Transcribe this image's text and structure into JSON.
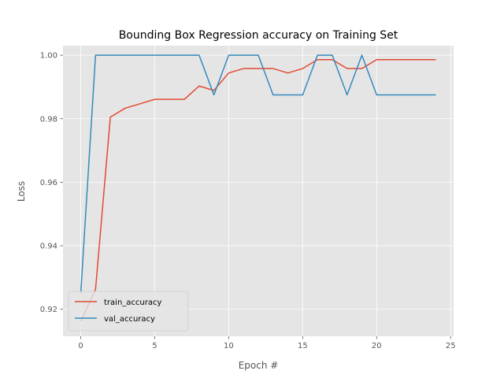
{
  "chart_data": {
    "type": "line",
    "title": "Bounding Box Regression accuracy on Training Set",
    "xlabel": "Epoch #",
    "ylabel": "Loss",
    "xlim": [
      -1.2,
      25.2
    ],
    "ylim": [
      0.9115,
      1.003
    ],
    "xticks": [
      0,
      5,
      10,
      15,
      20,
      25
    ],
    "xtick_labels": [
      "0",
      "5",
      "10",
      "15",
      "20",
      "25"
    ],
    "yticks": [
      0.92,
      0.94,
      0.96,
      0.98,
      1.0
    ],
    "ytick_labels": [
      "0.92",
      "0.94",
      "0.96",
      "0.98",
      "1.00"
    ],
    "grid": true,
    "legend_position": "lower-left",
    "x": [
      0,
      1,
      2,
      3,
      4,
      5,
      6,
      7,
      8,
      9,
      10,
      11,
      12,
      13,
      14,
      15,
      16,
      17,
      18,
      19,
      20,
      21,
      22,
      23,
      24
    ],
    "series": [
      {
        "name": "train_accuracy",
        "color": "#E24A33",
        "values": [
          0.9162,
          0.9263,
          0.9805,
          0.9833,
          0.9847,
          0.9861,
          0.9861,
          0.9861,
          0.9903,
          0.9889,
          0.9944,
          0.9958,
          0.9958,
          0.9958,
          0.9944,
          0.9958,
          0.9986,
          0.9986,
          0.9958,
          0.9958,
          0.9986,
          0.9986,
          0.9986,
          0.9986,
          0.9986
        ]
      },
      {
        "name": "val_accuracy",
        "color": "#348ABD",
        "values": [
          0.925,
          1.0,
          1.0,
          1.0,
          1.0,
          1.0,
          1.0,
          1.0,
          1.0,
          0.9875,
          1.0,
          1.0,
          1.0,
          0.9875,
          0.9875,
          0.9875,
          1.0,
          1.0,
          0.9875,
          1.0,
          0.9875,
          0.9875,
          0.9875,
          0.9875,
          0.9875
        ]
      }
    ]
  },
  "style": {
    "plot_bg": "#E5E5E5",
    "grid_color": "#FFFFFF",
    "tick_color": "#555555"
  }
}
